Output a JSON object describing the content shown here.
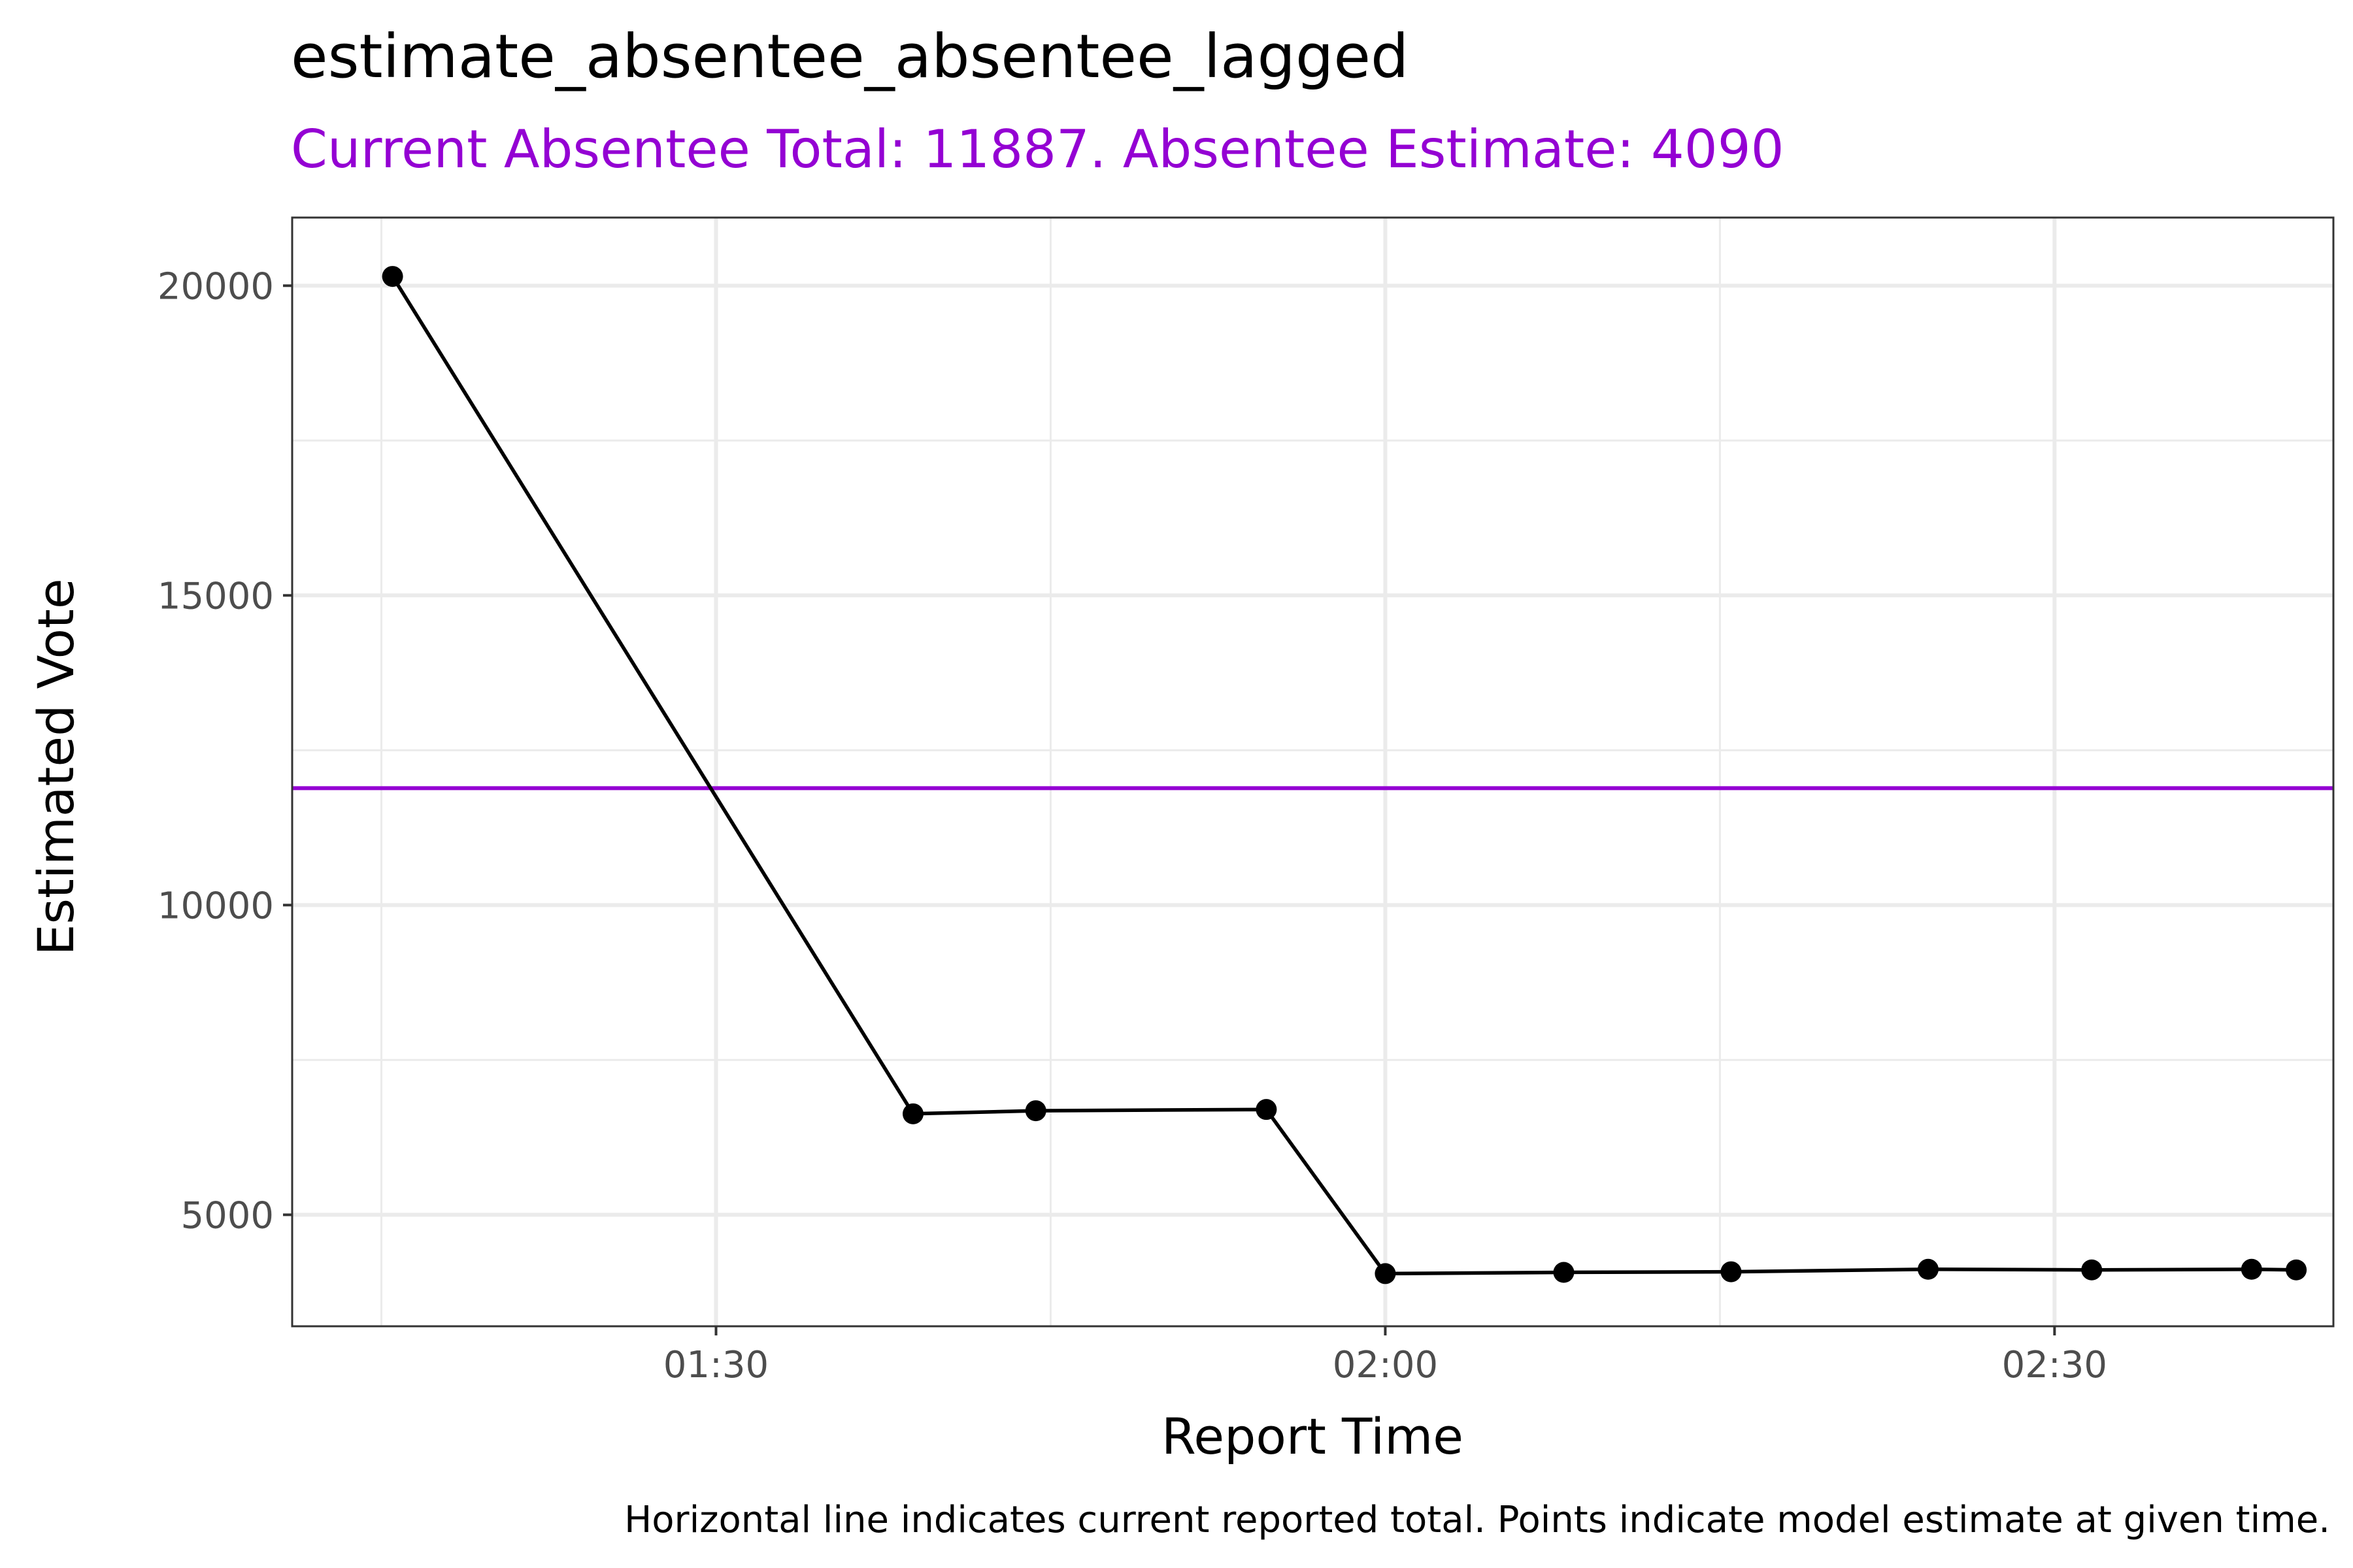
{
  "chart_data": {
    "type": "line",
    "title": "estimate_absentee_absentee_lagged",
    "subtitle": "Current Absentee Total: 11887. Absentee Estimate: 4090",
    "xlabel": "Report Time",
    "ylabel": "Estimated Vote",
    "caption": "Horizontal line indicates current reported total. Points indicate model estimate at given time.",
    "x_axis": "time (HH:MM)",
    "xlim": [
      "01:11:00",
      "02:42:30"
    ],
    "ylim": [
      3200,
      21100
    ],
    "x_ticks": [
      {
        "value": "01:30",
        "label": "01:30"
      },
      {
        "value": "02:00",
        "label": "02:00"
      },
      {
        "value": "02:30",
        "label": "02:30"
      }
    ],
    "x_minor_ticks": [
      "01:15",
      "01:45",
      "02:15"
    ],
    "y_ticks": [
      {
        "value": 5000,
        "label": "5000"
      },
      {
        "value": 10000,
        "label": "10000"
      },
      {
        "value": 15000,
        "label": "15000"
      },
      {
        "value": 20000,
        "label": "20000"
      }
    ],
    "y_minor_ticks": [
      7500,
      12500,
      17500
    ],
    "grid": true,
    "hline": {
      "value": 11887,
      "color": "#9400D3"
    },
    "series": [
      {
        "color": "#000000",
        "points": [
          {
            "x": "01:15:30",
            "y": 20150
          },
          {
            "x": "01:38:50",
            "y": 6630
          },
          {
            "x": "01:44:20",
            "y": 6680
          },
          {
            "x": "01:54:40",
            "y": 6700
          },
          {
            "x": "02:00:00",
            "y": 4050
          },
          {
            "x": "02:08:00",
            "y": 4070
          },
          {
            "x": "02:15:30",
            "y": 4080
          },
          {
            "x": "02:24:20",
            "y": 4120
          },
          {
            "x": "02:31:40",
            "y": 4110
          },
          {
            "x": "02:38:50",
            "y": 4120
          },
          {
            "x": "02:40:50",
            "y": 4110
          }
        ]
      }
    ],
    "colors": {
      "subtitle": "#9400D3",
      "hline": "#9400D3",
      "series": "#000000",
      "grid": "#ebebeb",
      "panel_border": "#333333",
      "tick_label": "#4d4d4d"
    }
  }
}
